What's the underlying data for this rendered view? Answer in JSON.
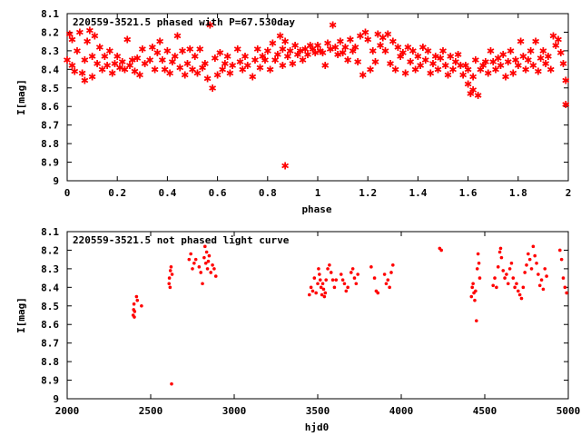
{
  "chart_data": [
    {
      "type": "scatter",
      "title": "220559-3521.5 phased with P=67.530day",
      "xlabel": "phase",
      "ylabel": "I[mag]",
      "xlim": [
        0,
        2
      ],
      "ylim": [
        8.1,
        9
      ],
      "y_inverted": true,
      "xticks": [
        "0",
        "0.2",
        "0.4",
        "0.6",
        "0.8",
        "1",
        "1.2",
        "1.4",
        "1.6",
        "1.8",
        "2"
      ],
      "xtick_values": [
        0,
        0.2,
        0.4,
        0.6,
        0.8,
        1,
        1.2,
        1.4,
        1.6,
        1.8,
        2
      ],
      "yticks": [
        "8.1",
        "8.2",
        "8.3",
        "8.4",
        "8.5",
        "8.6",
        "8.7",
        "8.8",
        "8.9",
        "9"
      ],
      "ytick_values": [
        8.1,
        8.2,
        8.3,
        8.4,
        8.5,
        8.6,
        8.7,
        8.8,
        8.9,
        9
      ],
      "marker_color": "#ff0000",
      "marker": "star",
      "points": [
        [
          0.0,
          8.35
        ],
        [
          0.01,
          8.21
        ],
        [
          0.02,
          8.38
        ],
        [
          0.02,
          8.24
        ],
        [
          0.03,
          8.41
        ],
        [
          0.04,
          8.3
        ],
        [
          0.05,
          8.2
        ],
        [
          0.06,
          8.42
        ],
        [
          0.07,
          8.35
        ],
        [
          0.07,
          8.46
        ],
        [
          0.08,
          8.25
        ],
        [
          0.09,
          8.19
        ],
        [
          0.1,
          8.33
        ],
        [
          0.1,
          8.44
        ],
        [
          0.11,
          8.22
        ],
        [
          0.12,
          8.37
        ],
        [
          0.13,
          8.28
        ],
        [
          0.14,
          8.4
        ],
        [
          0.15,
          8.33
        ],
        [
          0.16,
          8.38
        ],
        [
          0.17,
          8.3
        ],
        [
          0.18,
          8.42
        ],
        [
          0.19,
          8.37
        ],
        [
          0.2,
          8.33
        ],
        [
          0.21,
          8.39
        ],
        [
          0.22,
          8.36
        ],
        [
          0.23,
          8.4
        ],
        [
          0.24,
          8.24
        ],
        [
          0.25,
          8.38
        ],
        [
          0.26,
          8.35
        ],
        [
          0.27,
          8.41
        ],
        [
          0.28,
          8.34
        ],
        [
          0.29,
          8.43
        ],
        [
          0.3,
          8.29
        ],
        [
          0.31,
          8.37
        ],
        [
          0.33,
          8.35
        ],
        [
          0.34,
          8.28
        ],
        [
          0.35,
          8.4
        ],
        [
          0.36,
          8.31
        ],
        [
          0.37,
          8.25
        ],
        [
          0.38,
          8.35
        ],
        [
          0.39,
          8.4
        ],
        [
          0.4,
          8.3
        ],
        [
          0.41,
          8.42
        ],
        [
          0.42,
          8.36
        ],
        [
          0.43,
          8.33
        ],
        [
          0.44,
          8.22
        ],
        [
          0.45,
          8.39
        ],
        [
          0.46,
          8.3
        ],
        [
          0.47,
          8.43
        ],
        [
          0.48,
          8.37
        ],
        [
          0.49,
          8.29
        ],
        [
          0.5,
          8.4
        ],
        [
          0.51,
          8.33
        ],
        [
          0.52,
          8.42
        ],
        [
          0.53,
          8.29
        ],
        [
          0.54,
          8.39
        ],
        [
          0.55,
          8.37
        ],
        [
          0.56,
          8.45
        ],
        [
          0.57,
          8.16
        ],
        [
          0.58,
          8.5
        ],
        [
          0.59,
          8.34
        ],
        [
          0.6,
          8.43
        ],
        [
          0.61,
          8.31
        ],
        [
          0.62,
          8.4
        ],
        [
          0.63,
          8.37
        ],
        [
          0.64,
          8.33
        ],
        [
          0.65,
          8.42
        ],
        [
          0.66,
          8.38
        ],
        [
          0.68,
          8.29
        ],
        [
          0.69,
          8.36
        ],
        [
          0.7,
          8.4
        ],
        [
          0.71,
          8.33
        ],
        [
          0.72,
          8.38
        ],
        [
          0.74,
          8.44
        ],
        [
          0.75,
          8.35
        ],
        [
          0.76,
          8.29
        ],
        [
          0.77,
          8.39
        ],
        [
          0.78,
          8.33
        ],
        [
          0.79,
          8.35
        ],
        [
          0.8,
          8.3
        ],
        [
          0.81,
          8.4
        ],
        [
          0.82,
          8.26
        ],
        [
          0.83,
          8.35
        ],
        [
          0.84,
          8.32
        ],
        [
          0.85,
          8.22
        ],
        [
          0.86,
          8.29
        ],
        [
          0.86,
          8.38
        ],
        [
          0.87,
          8.25
        ],
        [
          0.87,
          8.92
        ],
        [
          0.88,
          8.33
        ],
        [
          0.89,
          8.3
        ],
        [
          0.9,
          8.37
        ],
        [
          0.91,
          8.27
        ],
        [
          0.92,
          8.32
        ],
        [
          0.93,
          8.3
        ],
        [
          0.94,
          8.35
        ],
        [
          0.95,
          8.29
        ],
        [
          0.96,
          8.32
        ],
        [
          0.97,
          8.27
        ],
        [
          0.98,
          8.29
        ],
        [
          0.99,
          8.31
        ],
        [
          1.0,
          8.27
        ],
        [
          1.01,
          8.3
        ],
        [
          1.02,
          8.31
        ],
        [
          1.03,
          8.38
        ],
        [
          1.04,
          8.26
        ],
        [
          1.05,
          8.29
        ],
        [
          1.06,
          8.16
        ],
        [
          1.07,
          8.28
        ],
        [
          1.08,
          8.32
        ],
        [
          1.09,
          8.25
        ],
        [
          1.1,
          8.31
        ],
        [
          1.11,
          8.28
        ],
        [
          1.12,
          8.35
        ],
        [
          1.13,
          8.24
        ],
        [
          1.14,
          8.3
        ],
        [
          1.15,
          8.28
        ],
        [
          1.16,
          8.36
        ],
        [
          1.17,
          8.22
        ],
        [
          1.18,
          8.43
        ],
        [
          1.19,
          8.2
        ],
        [
          1.2,
          8.24
        ],
        [
          1.21,
          8.4
        ],
        [
          1.22,
          8.3
        ],
        [
          1.23,
          8.36
        ],
        [
          1.24,
          8.21
        ],
        [
          1.25,
          8.27
        ],
        [
          1.26,
          8.23
        ],
        [
          1.27,
          8.3
        ],
        [
          1.28,
          8.21
        ],
        [
          1.29,
          8.37
        ],
        [
          1.3,
          8.25
        ],
        [
          1.31,
          8.4
        ],
        [
          1.32,
          8.28
        ],
        [
          1.33,
          8.33
        ],
        [
          1.34,
          8.31
        ],
        [
          1.35,
          8.42
        ],
        [
          1.36,
          8.28
        ],
        [
          1.37,
          8.36
        ],
        [
          1.38,
          8.3
        ],
        [
          1.39,
          8.4
        ],
        [
          1.4,
          8.33
        ],
        [
          1.41,
          8.38
        ],
        [
          1.42,
          8.28
        ],
        [
          1.43,
          8.35
        ],
        [
          1.44,
          8.3
        ],
        [
          1.45,
          8.42
        ],
        [
          1.46,
          8.37
        ],
        [
          1.47,
          8.33
        ],
        [
          1.48,
          8.4
        ],
        [
          1.49,
          8.34
        ],
        [
          1.5,
          8.3
        ],
        [
          1.51,
          8.38
        ],
        [
          1.52,
          8.43
        ],
        [
          1.53,
          8.33
        ],
        [
          1.54,
          8.4
        ],
        [
          1.55,
          8.36
        ],
        [
          1.56,
          8.32
        ],
        [
          1.57,
          8.38
        ],
        [
          1.58,
          8.43
        ],
        [
          1.59,
          8.38
        ],
        [
          1.6,
          8.4
        ],
        [
          1.6,
          8.48
        ],
        [
          1.61,
          8.53
        ],
        [
          1.62,
          8.44
        ],
        [
          1.62,
          8.51
        ],
        [
          1.63,
          8.35
        ],
        [
          1.64,
          8.54
        ],
        [
          1.65,
          8.4
        ],
        [
          1.66,
          8.38
        ],
        [
          1.67,
          8.36
        ],
        [
          1.68,
          8.42
        ],
        [
          1.69,
          8.3
        ],
        [
          1.7,
          8.36
        ],
        [
          1.71,
          8.4
        ],
        [
          1.72,
          8.34
        ],
        [
          1.73,
          8.38
        ],
        [
          1.74,
          8.32
        ],
        [
          1.75,
          8.44
        ],
        [
          1.76,
          8.36
        ],
        [
          1.77,
          8.3
        ],
        [
          1.78,
          8.42
        ],
        [
          1.79,
          8.35
        ],
        [
          1.8,
          8.38
        ],
        [
          1.81,
          8.25
        ],
        [
          1.82,
          8.33
        ],
        [
          1.83,
          8.4
        ],
        [
          1.84,
          8.35
        ],
        [
          1.85,
          8.3
        ],
        [
          1.86,
          8.38
        ],
        [
          1.87,
          8.25
        ],
        [
          1.88,
          8.41
        ],
        [
          1.89,
          8.34
        ],
        [
          1.9,
          8.3
        ],
        [
          1.91,
          8.37
        ],
        [
          1.92,
          8.33
        ],
        [
          1.93,
          8.4
        ],
        [
          1.94,
          8.22
        ],
        [
          1.95,
          8.27
        ],
        [
          1.96,
          8.24
        ],
        [
          1.97,
          8.31
        ],
        [
          1.98,
          8.37
        ],
        [
          1.99,
          8.46
        ],
        [
          1.99,
          8.59
        ]
      ]
    },
    {
      "type": "scatter",
      "title": "220559-3521.5 not phased light curve",
      "xlabel": "hjd0",
      "ylabel": "I[mag]",
      "xlim": [
        2000,
        5000
      ],
      "ylim": [
        8.1,
        9
      ],
      "y_inverted": true,
      "xticks": [
        "2000",
        "2500",
        "3000",
        "3500",
        "4000",
        "4500",
        "5000"
      ],
      "xtick_values": [
        2000,
        2500,
        3000,
        3500,
        4000,
        4500,
        5000
      ],
      "yticks": [
        "8.1",
        "8.2",
        "8.3",
        "8.4",
        "8.5",
        "8.6",
        "8.7",
        "8.8",
        "8.9",
        "9"
      ],
      "ytick_values": [
        8.1,
        8.2,
        8.3,
        8.4,
        8.5,
        8.6,
        8.7,
        8.8,
        8.9,
        9
      ],
      "marker_color": "#ff0000",
      "marker": "dot",
      "points": [
        [
          2395,
          8.55
        ],
        [
          2398,
          8.52
        ],
        [
          2400,
          8.49
        ],
        [
          2402,
          8.56
        ],
        [
          2404,
          8.53
        ],
        [
          2415,
          8.45
        ],
        [
          2420,
          8.47
        ],
        [
          2445,
          8.5
        ],
        [
          2610,
          8.38
        ],
        [
          2612,
          8.35
        ],
        [
          2616,
          8.4
        ],
        [
          2618,
          8.31
        ],
        [
          2622,
          8.29
        ],
        [
          2625,
          8.92
        ],
        [
          2628,
          8.33
        ],
        [
          2730,
          8.25
        ],
        [
          2740,
          8.22
        ],
        [
          2750,
          8.3
        ],
        [
          2760,
          8.27
        ],
        [
          2770,
          8.25
        ],
        [
          2790,
          8.29
        ],
        [
          2800,
          8.32
        ],
        [
          2810,
          8.38
        ],
        [
          2820,
          8.24
        ],
        [
          2825,
          8.18
        ],
        [
          2830,
          8.27
        ],
        [
          2835,
          8.21
        ],
        [
          2840,
          8.3
        ],
        [
          2845,
          8.26
        ],
        [
          2850,
          8.23
        ],
        [
          2860,
          8.32
        ],
        [
          2870,
          8.28
        ],
        [
          2880,
          8.3
        ],
        [
          2890,
          8.34
        ],
        [
          3450,
          8.44
        ],
        [
          3460,
          8.4
        ],
        [
          3470,
          8.42
        ],
        [
          3480,
          8.35
        ],
        [
          3490,
          8.43
        ],
        [
          3500,
          8.38
        ],
        [
          3505,
          8.3
        ],
        [
          3510,
          8.33
        ],
        [
          3515,
          8.36
        ],
        [
          3520,
          8.4
        ],
        [
          3525,
          8.44
        ],
        [
          3530,
          8.38
        ],
        [
          3535,
          8.41
        ],
        [
          3540,
          8.45
        ],
        [
          3545,
          8.43
        ],
        [
          3550,
          8.36
        ],
        [
          3560,
          8.3
        ],
        [
          3570,
          8.28
        ],
        [
          3580,
          8.32
        ],
        [
          3590,
          8.36
        ],
        [
          3600,
          8.4
        ],
        [
          3610,
          8.36
        ],
        [
          3640,
          8.33
        ],
        [
          3650,
          8.36
        ],
        [
          3660,
          8.38
        ],
        [
          3670,
          8.42
        ],
        [
          3680,
          8.4
        ],
        [
          3700,
          8.32
        ],
        [
          3710,
          8.3
        ],
        [
          3720,
          8.35
        ],
        [
          3730,
          8.38
        ],
        [
          3740,
          8.33
        ],
        [
          3820,
          8.29
        ],
        [
          3840,
          8.35
        ],
        [
          3850,
          8.42
        ],
        [
          3860,
          8.43
        ],
        [
          3900,
          8.33
        ],
        [
          3910,
          8.38
        ],
        [
          3920,
          8.36
        ],
        [
          3930,
          8.4
        ],
        [
          3940,
          8.32
        ],
        [
          3950,
          8.28
        ],
        [
          4230,
          8.19
        ],
        [
          4240,
          8.2
        ],
        [
          4420,
          8.45
        ],
        [
          4425,
          8.4
        ],
        [
          4430,
          8.38
        ],
        [
          4435,
          8.43
        ],
        [
          4440,
          8.47
        ],
        [
          4445,
          8.42
        ],
        [
          4450,
          8.58
        ],
        [
          4455,
          8.3
        ],
        [
          4460,
          8.22
        ],
        [
          4465,
          8.27
        ],
        [
          4470,
          8.35
        ],
        [
          4550,
          8.39
        ],
        [
          4560,
          8.35
        ],
        [
          4570,
          8.4
        ],
        [
          4580,
          8.29
        ],
        [
          4590,
          8.21
        ],
        [
          4595,
          8.19
        ],
        [
          4600,
          8.24
        ],
        [
          4610,
          8.31
        ],
        [
          4620,
          8.35
        ],
        [
          4630,
          8.33
        ],
        [
          4640,
          8.38
        ],
        [
          4650,
          8.3
        ],
        [
          4660,
          8.27
        ],
        [
          4670,
          8.35
        ],
        [
          4680,
          8.4
        ],
        [
          4690,
          8.38
        ],
        [
          4700,
          8.42
        ],
        [
          4710,
          8.44
        ],
        [
          4720,
          8.46
        ],
        [
          4730,
          8.4
        ],
        [
          4740,
          8.32
        ],
        [
          4750,
          8.28
        ],
        [
          4760,
          8.22
        ],
        [
          4770,
          8.25
        ],
        [
          4780,
          8.3
        ],
        [
          4790,
          8.18
        ],
        [
          4800,
          8.23
        ],
        [
          4810,
          8.27
        ],
        [
          4820,
          8.33
        ],
        [
          4830,
          8.39
        ],
        [
          4840,
          8.36
        ],
        [
          4850,
          8.41
        ],
        [
          4860,
          8.3
        ],
        [
          4870,
          8.34
        ],
        [
          4950,
          8.2
        ],
        [
          4960,
          8.25
        ],
        [
          4970,
          8.35
        ],
        [
          4980,
          8.4
        ],
        [
          4990,
          8.43
        ]
      ]
    }
  ]
}
